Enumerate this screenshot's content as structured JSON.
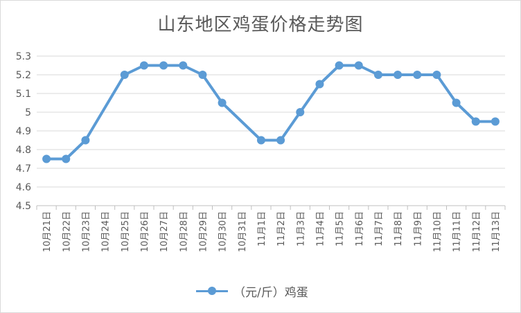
{
  "chart_data": {
    "type": "line",
    "title": "山东地区鸡蛋价格走势图",
    "xlabel": "",
    "ylabel": "",
    "categories": [
      "10月21日",
      "10月22日",
      "10月23日",
      "10月24日",
      "10月25日",
      "10月26日",
      "10月27日",
      "10月28日",
      "10月29日",
      "10月30日",
      "10月31日",
      "11月1日",
      "11月2日",
      "11月3日",
      "11月4日",
      "11月5日",
      "11月6日",
      "11月7日",
      "11月8日",
      "11月9日",
      "11月10日",
      "11月11日",
      "11月12日",
      "11月13日"
    ],
    "series": [
      {
        "name": "（元/斤）鸡蛋",
        "color": "#5b9bd5",
        "values": [
          4.75,
          4.75,
          4.85,
          null,
          5.2,
          5.25,
          5.25,
          5.25,
          5.2,
          5.05,
          null,
          4.85,
          4.85,
          5.0,
          5.15,
          5.25,
          5.25,
          5.2,
          5.2,
          5.2,
          5.2,
          5.05,
          4.95,
          4.95
        ]
      }
    ],
    "ylim": [
      4.5,
      5.3
    ],
    "yticks": [
      "4.5",
      "4.6",
      "4.7",
      "4.8",
      "4.9",
      "5",
      "5.1",
      "5.2",
      "5.3"
    ],
    "grid": true,
    "legend": "bottom"
  }
}
